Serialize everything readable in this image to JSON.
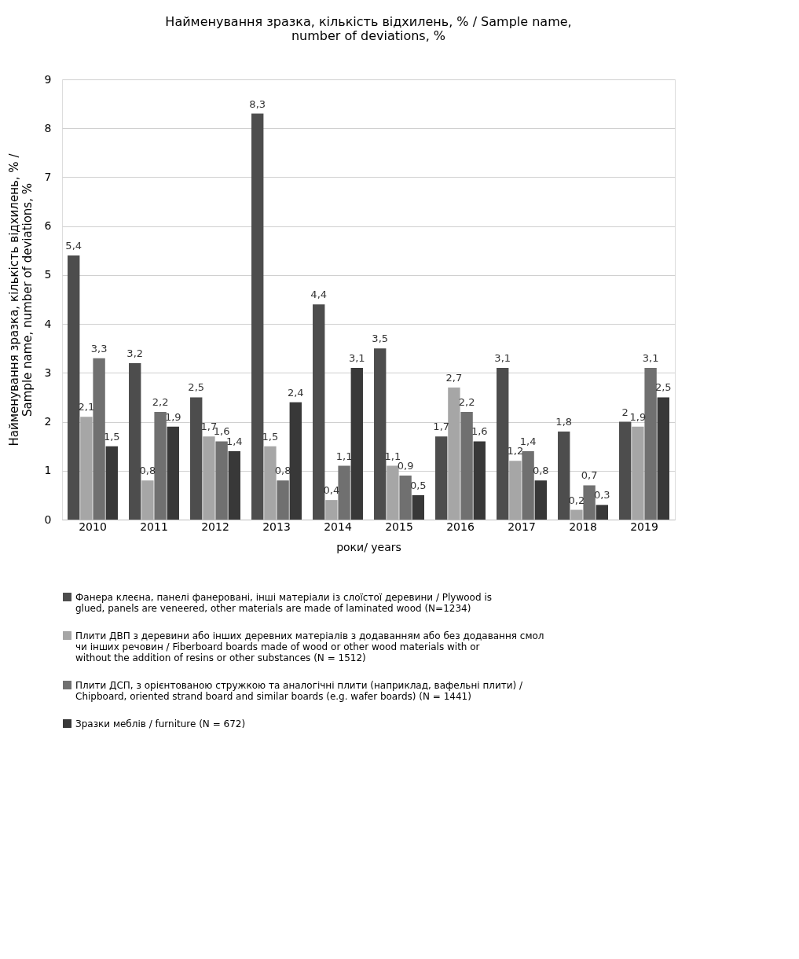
{
  "chart_data": {
    "type": "bar",
    "title": "Найменування зразка, кількість відхилень, % / Sample name, number of deviations, %",
    "xlabel": "роки/ years",
    "ylabel": "Найменування зразка, кількість відхилень, % / Sample name, number of deviations, %",
    "categories": [
      "2010",
      "2011",
      "2012",
      "2013",
      "2014",
      "2015",
      "2016",
      "2017",
      "2018",
      "2019"
    ],
    "ylim": [
      0,
      9
    ],
    "yticks": [
      0,
      1,
      2,
      3,
      4,
      5,
      6,
      7,
      8,
      9
    ],
    "grid": "y",
    "legend": "bottom",
    "series": [
      {
        "name": "Фанера клеєна, панелі фанеровані, інші матеріали із слоїстої деревини / Plywood is glued, panels are veneered, other materials are made of laminated wood (N=1234)",
        "color": "#4d4d4d",
        "values": [
          5.4,
          3.2,
          2.5,
          8.3,
          4.4,
          3.5,
          1.7,
          3.1,
          1.8,
          2
        ],
        "value_labels": [
          "5,4",
          "3,2",
          "2,5",
          "8,3",
          "4,4",
          "3,5",
          "1,7",
          "3,1",
          "1,8",
          "2"
        ]
      },
      {
        "name": "Плити ДВП з деревини або інших деревних матеріалів з додаванням або без додавання смол чи інших речовин / Fiberboard boards made of wood or other wood materials with or without the addition of resins or other substances (N = 1512)",
        "color": "#a6a6a6",
        "values": [
          2.1,
          0.8,
          1.7,
          1.5,
          0.4,
          1.1,
          2.7,
          1.2,
          0.2,
          1.9
        ],
        "value_labels": [
          "2,1",
          "0,8",
          "1,7",
          "1,5",
          "0,4",
          "1,1",
          "2,7",
          "1,2",
          "0,2",
          "1,9"
        ]
      },
      {
        "name": "Плити ДСП, з орієнтованою стружкою та аналогічні плити (наприклад, вафельні плити) / Chipboard, oriented strand board and similar boards (e.g. wafer boards) (N = 1441)",
        "color": "#707070",
        "values": [
          3.3,
          2.2,
          1.6,
          0.8,
          1.1,
          0.9,
          2.2,
          1.4,
          0.7,
          3.1
        ],
        "value_labels": [
          "3,3",
          "2,2",
          "1,6",
          "0,8",
          "1,1",
          "0,9",
          "2,2",
          "1,4",
          "0,7",
          "3,1"
        ]
      },
      {
        "name": "Зразки меблів / furniture (N = 672)",
        "color": "#383838",
        "values": [
          1.5,
          1.9,
          1.4,
          2.4,
          3.1,
          0.5,
          1.6,
          0.8,
          0.3,
          2.5
        ],
        "value_labels": [
          "1,5",
          "1,9",
          "1,4",
          "2,4",
          "3,1",
          "0,5",
          "1,6",
          "0,8",
          "0,3",
          "2,5"
        ]
      }
    ]
  }
}
